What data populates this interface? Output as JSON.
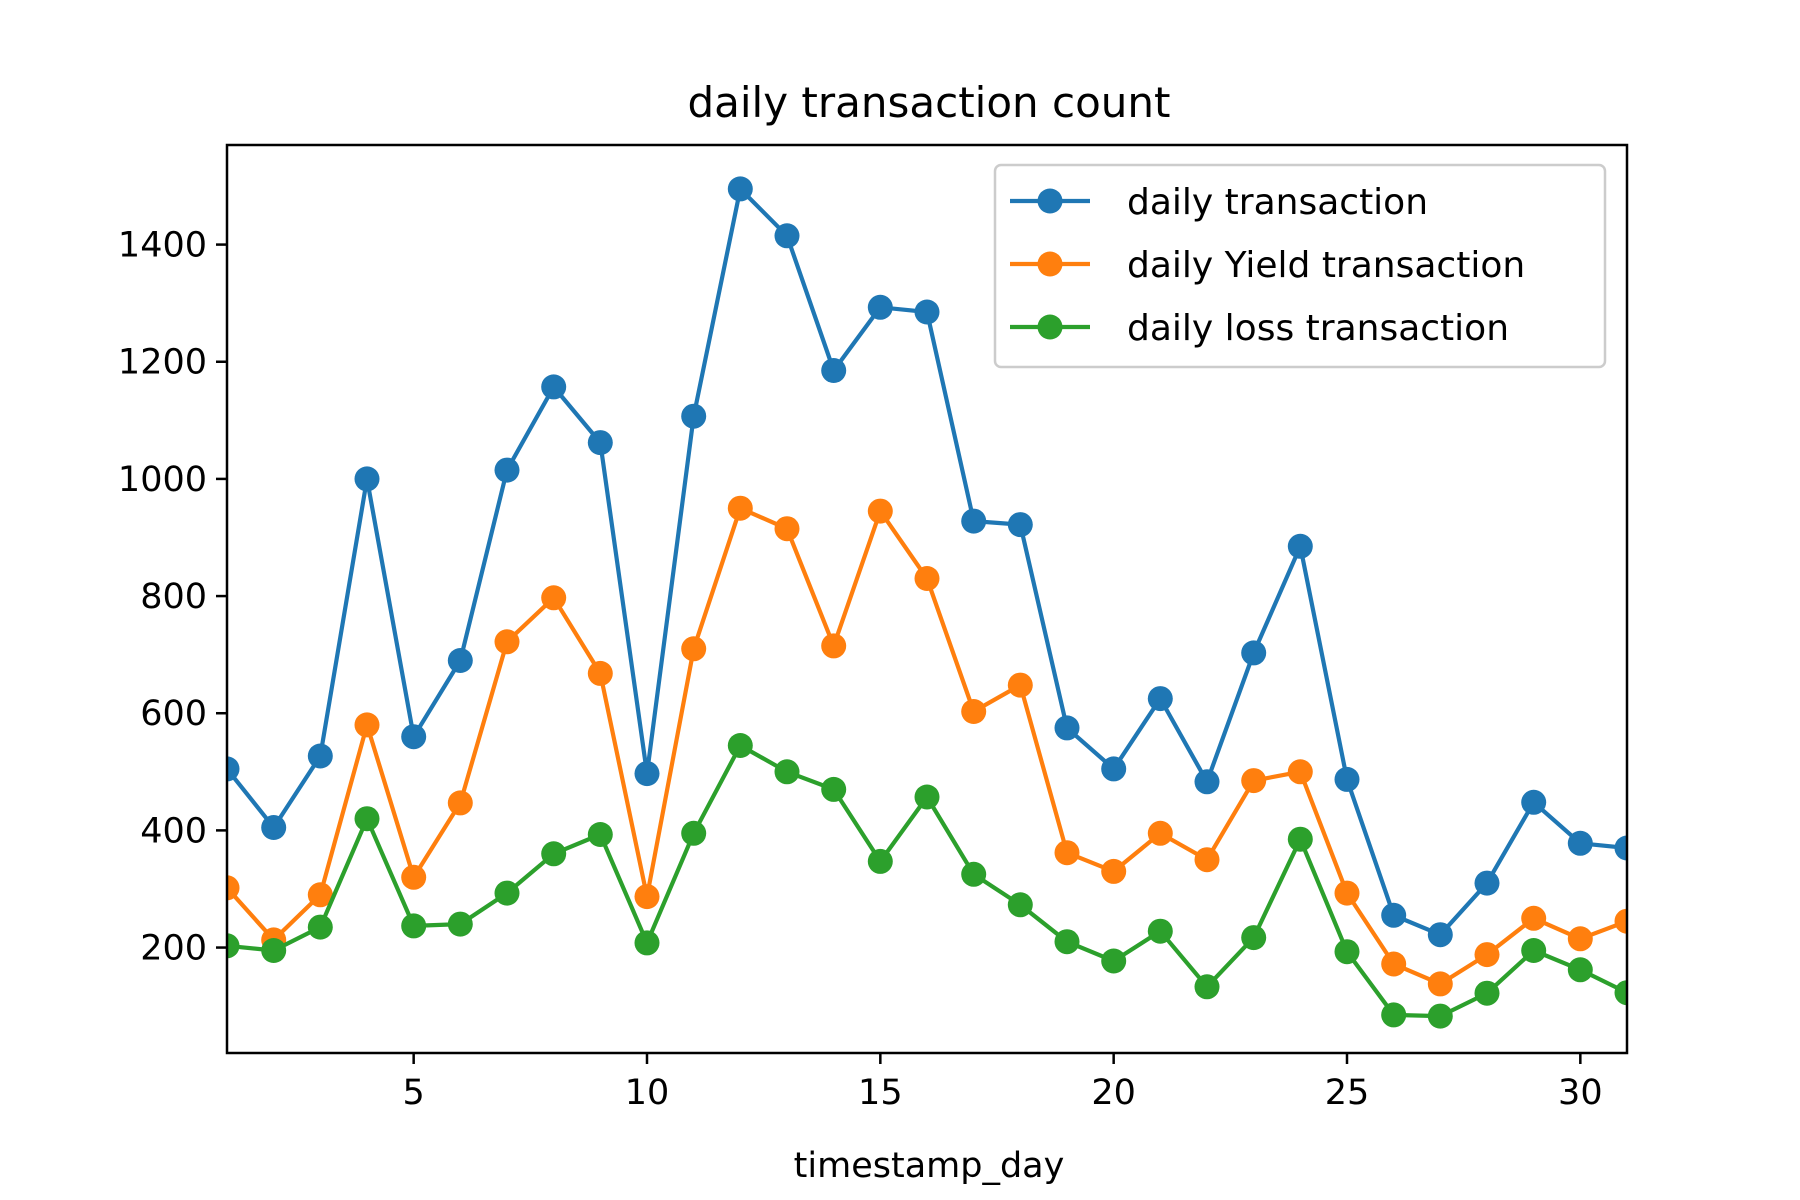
{
  "chart_data": {
    "type": "line",
    "title": "daily transaction count",
    "xlabel": "timestamp_day",
    "ylabel": "",
    "xlim": [
      1,
      31
    ],
    "ylim": [
      20,
      1570
    ],
    "xticks": [
      5,
      10,
      15,
      20,
      25,
      30
    ],
    "yticks": [
      200,
      400,
      600,
      800,
      1000,
      1200,
      1400
    ],
    "grid": false,
    "legend_position": "top-right",
    "x": [
      1,
      2,
      3,
      4,
      5,
      6,
      7,
      8,
      9,
      10,
      11,
      12,
      13,
      14,
      15,
      16,
      17,
      18,
      19,
      20,
      21,
      22,
      23,
      24,
      25,
      26,
      27,
      28,
      29,
      30,
      31
    ],
    "series": [
      {
        "name": "daily transaction",
        "color": "#1f77b4",
        "values": [
          505,
          405,
          527,
          1000,
          560,
          690,
          1015,
          1157,
          1062,
          497,
          1107,
          1495,
          1415,
          1185,
          1293,
          1285,
          928,
          922,
          575,
          505,
          625,
          483,
          703,
          885,
          487,
          255,
          222,
          310,
          448,
          378,
          370
        ]
      },
      {
        "name": "daily Yield transaction",
        "color": "#ff7f0e",
        "values": [
          302,
          213,
          290,
          580,
          320,
          447,
          722,
          797,
          668,
          287,
          710,
          950,
          915,
          715,
          945,
          830,
          603,
          648,
          362,
          330,
          395,
          350,
          485,
          500,
          293,
          172,
          138,
          188,
          250,
          215,
          245
        ]
      },
      {
        "name": "daily loss transaction",
        "color": "#2ca02c",
        "values": [
          203,
          195,
          235,
          420,
          237,
          240,
          293,
          360,
          393,
          208,
          395,
          545,
          500,
          470,
          347,
          457,
          325,
          273,
          210,
          177,
          228,
          133,
          217,
          385,
          193,
          85,
          83,
          122,
          195,
          162,
          123
        ]
      }
    ]
  }
}
